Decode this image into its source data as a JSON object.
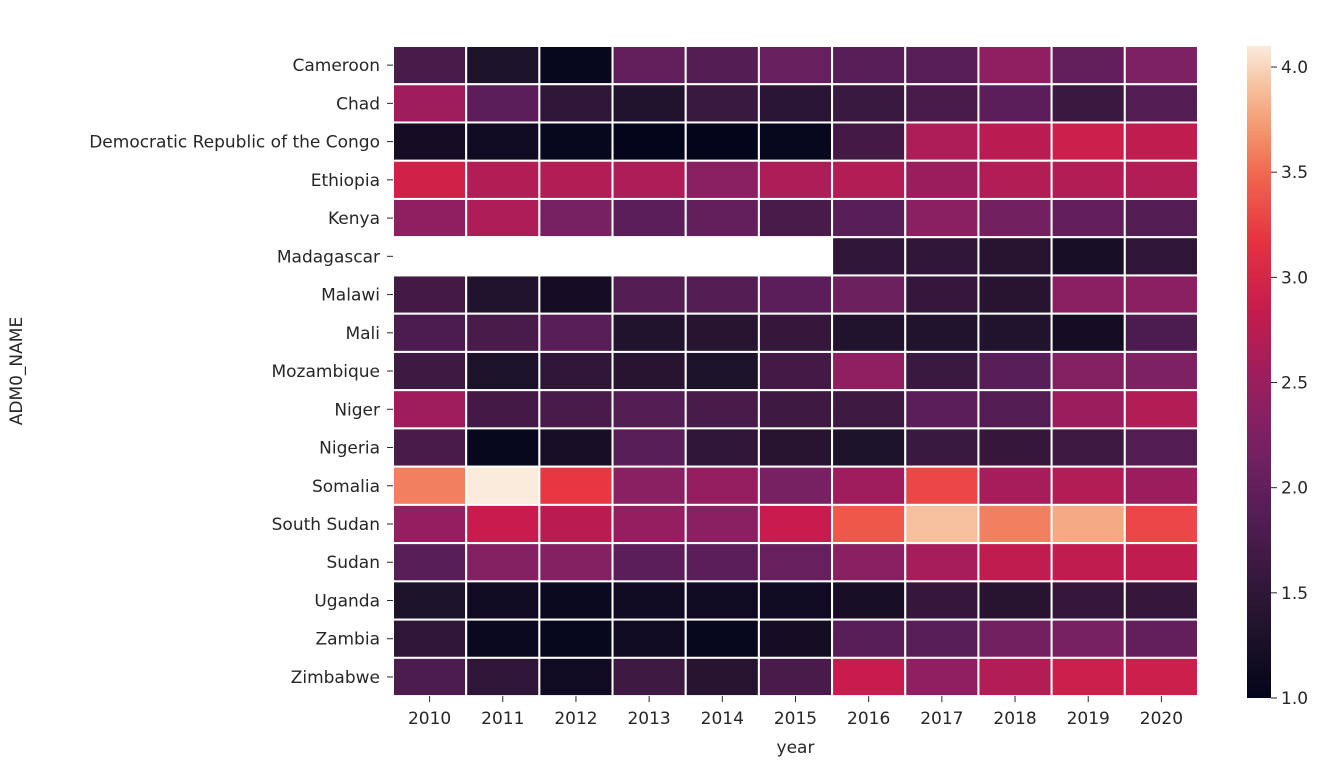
{
  "chart_data": {
    "type": "heatmap",
    "title": "",
    "xlabel": "year",
    "ylabel": "ADM0_NAME",
    "x": [
      "2010",
      "2011",
      "2012",
      "2013",
      "2014",
      "2015",
      "2016",
      "2017",
      "2018",
      "2019",
      "2020"
    ],
    "y": [
      "Cameroon",
      "Chad",
      "Democratic Republic of the Congo",
      "Ethiopia",
      "Kenya",
      "Madagascar",
      "Malawi",
      "Mali",
      "Mozambique",
      "Niger",
      "Nigeria",
      "Somalia",
      "South Sudan",
      "Sudan",
      "Uganda",
      "Zambia",
      "Zimbabwe"
    ],
    "values": [
      [
        1.75,
        1.3,
        1.05,
        2.0,
        1.85,
        2.05,
        1.9,
        1.9,
        2.4,
        2.0,
        2.25
      ],
      [
        2.55,
        1.95,
        1.5,
        1.35,
        1.6,
        1.45,
        1.6,
        1.75,
        1.95,
        1.6,
        1.85
      ],
      [
        1.2,
        1.15,
        1.05,
        1.0,
        1.0,
        1.05,
        1.7,
        2.65,
        2.75,
        2.9,
        2.8
      ],
      [
        2.95,
        2.7,
        2.7,
        2.65,
        2.35,
        2.65,
        2.7,
        2.5,
        2.7,
        2.7,
        2.7
      ],
      [
        2.4,
        2.65,
        2.2,
        1.95,
        2.0,
        1.75,
        1.9,
        2.35,
        2.15,
        2.0,
        1.85
      ],
      [
        null,
        null,
        null,
        null,
        null,
        null,
        1.5,
        1.5,
        1.4,
        1.25,
        1.5
      ],
      [
        1.7,
        1.35,
        1.2,
        1.85,
        1.85,
        1.95,
        2.1,
        1.55,
        1.4,
        2.35,
        2.35
      ],
      [
        1.8,
        1.75,
        1.9,
        1.35,
        1.4,
        1.55,
        1.35,
        1.35,
        1.35,
        1.2,
        1.8
      ],
      [
        1.65,
        1.3,
        1.5,
        1.4,
        1.3,
        1.7,
        2.4,
        1.6,
        1.9,
        2.3,
        2.25
      ],
      [
        2.55,
        1.7,
        1.75,
        1.85,
        1.75,
        1.65,
        1.65,
        1.95,
        1.85,
        2.5,
        2.7
      ],
      [
        1.75,
        1.05,
        1.25,
        1.9,
        1.5,
        1.4,
        1.3,
        1.6,
        1.55,
        1.65,
        1.85
      ],
      [
        3.6,
        4.1,
        3.2,
        2.35,
        2.45,
        2.2,
        2.55,
        3.3,
        2.6,
        2.7,
        2.5
      ],
      [
        2.45,
        2.85,
        2.75,
        2.45,
        2.35,
        2.85,
        3.4,
        3.9,
        3.6,
        3.8,
        3.3
      ],
      [
        1.9,
        2.3,
        2.3,
        1.95,
        1.95,
        2.05,
        2.35,
        2.6,
        2.8,
        2.8,
        2.8
      ],
      [
        1.3,
        1.15,
        1.1,
        1.15,
        1.15,
        1.15,
        1.25,
        1.55,
        1.4,
        1.55,
        1.55
      ],
      [
        1.5,
        1.1,
        1.05,
        1.15,
        1.05,
        1.2,
        1.9,
        1.9,
        2.15,
        2.2,
        2.0
      ],
      [
        1.8,
        1.5,
        1.15,
        1.65,
        1.4,
        1.75,
        2.85,
        2.4,
        2.7,
        2.9,
        2.9
      ]
    ],
    "missing_color": "#ffffff",
    "colormap": "rocket",
    "vmin": 1.0,
    "vmax": 4.1,
    "colorbar": {
      "ticks": [
        1.0,
        1.5,
        2.0,
        2.5,
        3.0,
        3.5,
        4.0
      ],
      "tick_labels": [
        "1.0",
        "1.5",
        "2.0",
        "2.5",
        "3.0",
        "3.5",
        "4.0"
      ],
      "placement": "right"
    },
    "grid": false,
    "cell_separator_color": "#ffffff"
  }
}
